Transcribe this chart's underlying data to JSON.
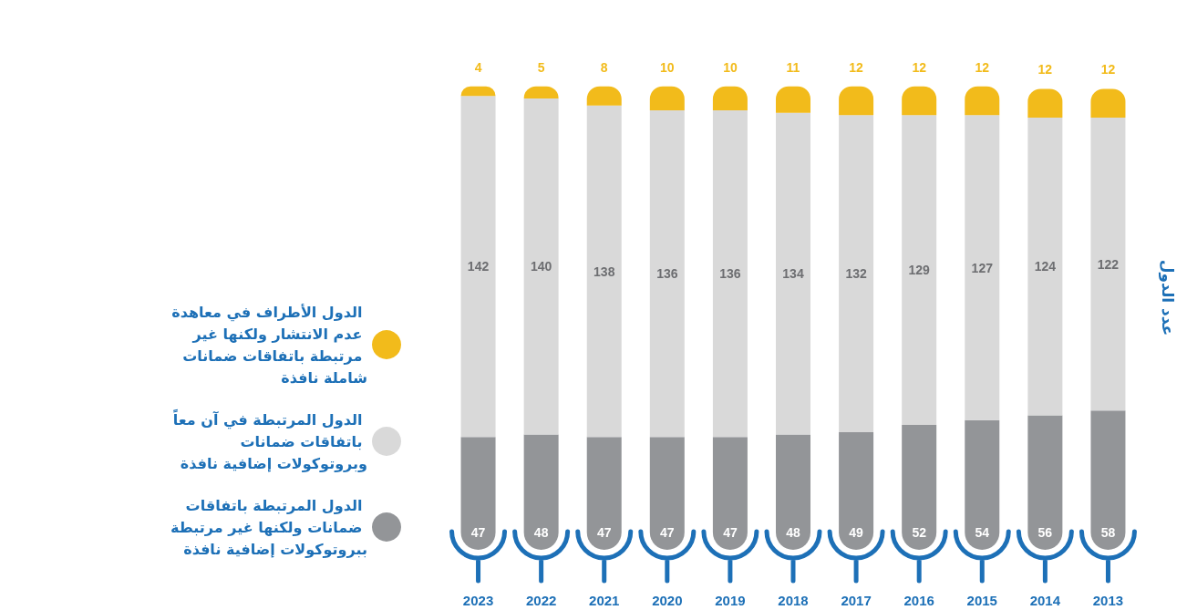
{
  "chart_data": {
    "type": "bar",
    "stacked": true,
    "ylabel": "عدد الدول",
    "legend": "left",
    "data_labels": true,
    "categories": [
      "2023",
      "2022",
      "2021",
      "2020",
      "2019",
      "2018",
      "2017",
      "2016",
      "2015",
      "2014",
      "2013"
    ],
    "series": [
      {
        "name": "الدول المرتبطة باتفاقات ضمانات ولكنها غير مرتبطة ببروتوكولات إضافية نافذة",
        "color": "#939598",
        "values": [
          47,
          48,
          47,
          47,
          47,
          48,
          49,
          52,
          54,
          56,
          58
        ]
      },
      {
        "name": "الدول المرتبطة في آن معاً باتفاقات ضمانات وبروتوكولات إضافية نافذة",
        "color": "#d9d9d9",
        "values": [
          142,
          140,
          138,
          136,
          136,
          134,
          132,
          129,
          127,
          124,
          122
        ]
      },
      {
        "name": "الدول الأطراف في معاهدة عدم الانتشار ولكنها غير مرتبطة باتفاقات ضمانات شاملة نافذة",
        "color": "#f2bb1b",
        "values": [
          4,
          5,
          8,
          10,
          10,
          11,
          12,
          12,
          12,
          12,
          12
        ]
      }
    ]
  }
}
